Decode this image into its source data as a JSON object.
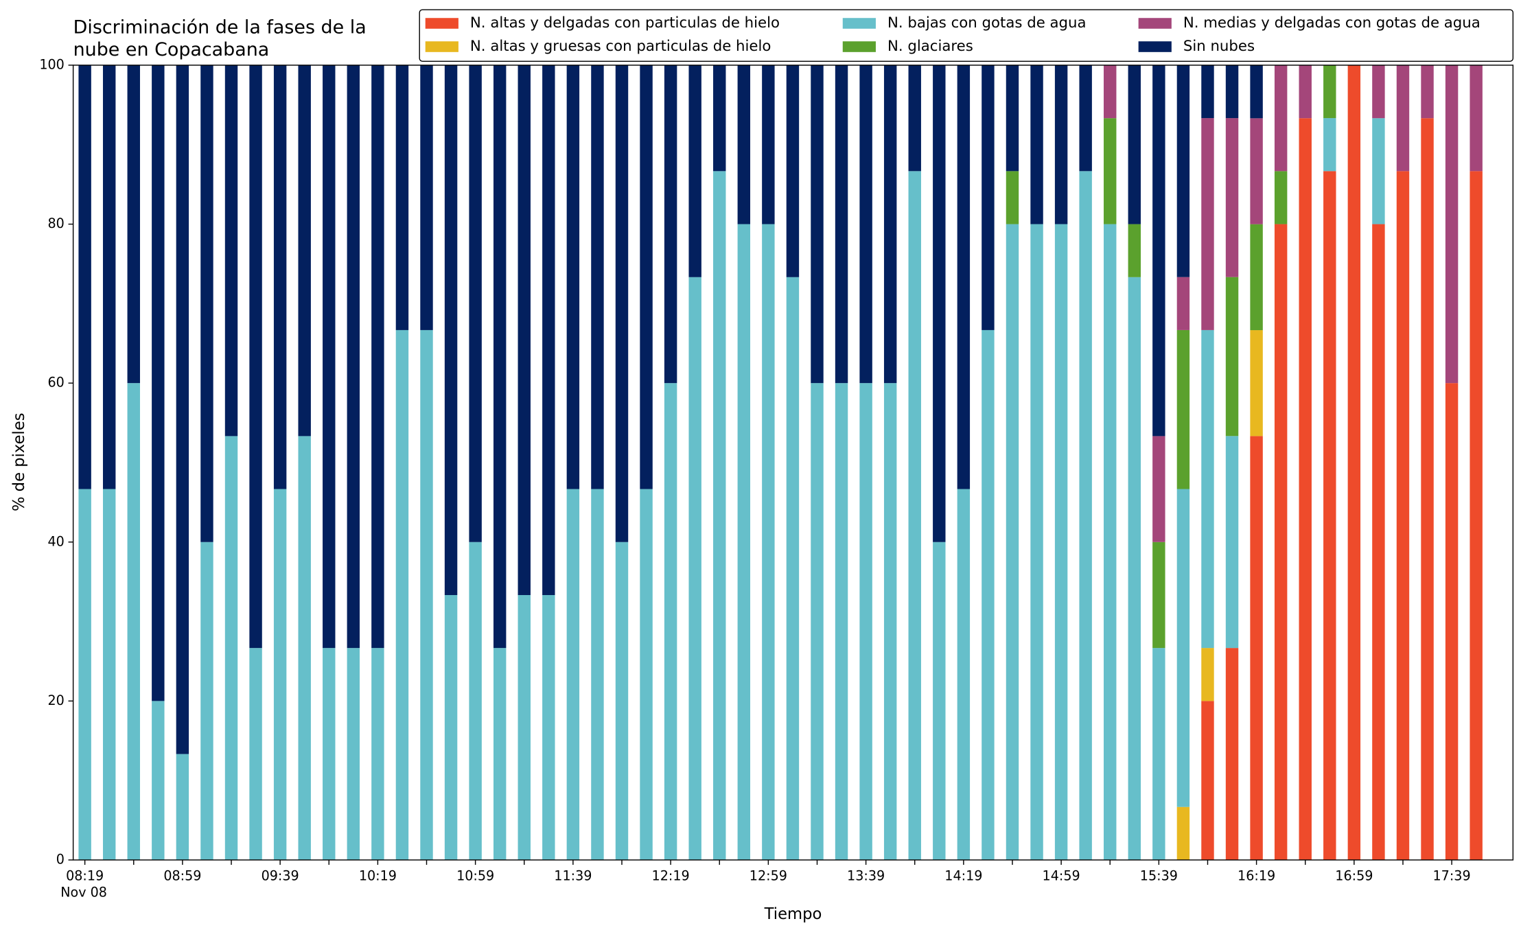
{
  "chart_data": {
    "type": "stacked_bar",
    "title": [
      "Discriminación de la fases de la",
      "nube en Copacabana"
    ],
    "xlabel": "Tiempo",
    "ylabel": "% de pixeles",
    "x_date_label": "Nov 08",
    "categories": [
      "08:19",
      null,
      null,
      null,
      "08:59",
      null,
      null,
      null,
      "09:39",
      null,
      null,
      null,
      "10:19",
      null,
      null,
      null,
      "10:59",
      null,
      null,
      null,
      "11:39",
      null,
      null,
      null,
      "12:19",
      null,
      null,
      null,
      "12:59",
      null,
      null,
      null,
      "13:39",
      null,
      null,
      null,
      "14:19",
      null,
      null,
      null,
      "14:59",
      null,
      null,
      null,
      "15:39",
      null,
      null,
      null,
      "16:19",
      null,
      null,
      null,
      "16:59",
      null,
      null,
      null,
      "17:39",
      null
    ],
    "ylim": [
      0,
      100
    ],
    "yticks": [
      0,
      20,
      40,
      60,
      80,
      100
    ],
    "grid": false,
    "legend": "top-right",
    "series": [
      {
        "name": "N. altas y delgadas con particulas de hielo",
        "color": "#ee4b2b",
        "values": [
          0,
          0,
          0,
          0,
          0,
          0,
          0,
          0,
          0,
          0,
          0,
          0,
          0,
          0,
          0,
          0,
          0,
          0,
          0,
          0,
          0,
          0,
          0,
          0,
          0,
          0,
          0,
          0,
          0,
          0,
          0,
          0,
          0,
          0,
          0,
          0,
          0,
          0,
          0,
          0,
          0,
          0,
          0,
          0,
          0,
          0,
          20,
          26.67,
          53.33,
          80,
          93.33,
          86.67,
          100,
          80,
          86.67,
          93.33,
          60,
          86.67
        ]
      },
      {
        "name": "N. altas y gruesas con particulas de hielo",
        "color": "#e8b820",
        "values": [
          0,
          0,
          0,
          0,
          0,
          0,
          0,
          0,
          0,
          0,
          0,
          0,
          0,
          0,
          0,
          0,
          0,
          0,
          0,
          0,
          0,
          0,
          0,
          0,
          0,
          0,
          0,
          0,
          0,
          0,
          0,
          0,
          0,
          0,
          0,
          0,
          0,
          0,
          0,
          0,
          0,
          0,
          0,
          0,
          0,
          6.67,
          6.67,
          0,
          13.33,
          0,
          0,
          0,
          0,
          0,
          0,
          0,
          0,
          0
        ]
      },
      {
        "name": "N. bajas con gotas de agua",
        "color": "#66bfca",
        "values": [
          46.67,
          46.67,
          60,
          20,
          13.33,
          40,
          53.33,
          26.67,
          46.67,
          53.33,
          26.67,
          26.67,
          26.67,
          66.67,
          66.67,
          33.33,
          40,
          26.67,
          33.33,
          33.33,
          46.67,
          46.67,
          40,
          46.67,
          60,
          73.33,
          86.67,
          80,
          80,
          73.33,
          60,
          60,
          60,
          60,
          86.67,
          40,
          46.67,
          66.67,
          80,
          80,
          80,
          86.67,
          80,
          73.33,
          26.67,
          40,
          40,
          26.67,
          0,
          0,
          0,
          6.67,
          0,
          13.33,
          0,
          0,
          0,
          0
        ]
      },
      {
        "name": "N. glaciares",
        "color": "#5ba12d",
        "values": [
          0,
          0,
          0,
          0,
          0,
          0,
          0,
          0,
          0,
          0,
          0,
          0,
          0,
          0,
          0,
          0,
          0,
          0,
          0,
          0,
          0,
          0,
          0,
          0,
          0,
          0,
          0,
          0,
          0,
          0,
          0,
          0,
          0,
          0,
          0,
          0,
          0,
          0,
          6.67,
          0,
          0,
          0,
          13.33,
          6.67,
          13.33,
          20,
          0,
          20,
          13.33,
          6.67,
          0,
          6.67,
          0,
          0,
          0,
          0,
          0,
          0
        ]
      },
      {
        "name": "N. medias y delgadas con gotas de agua",
        "color": "#a4467a",
        "values": [
          0,
          0,
          0,
          0,
          0,
          0,
          0,
          0,
          0,
          0,
          0,
          0,
          0,
          0,
          0,
          0,
          0,
          0,
          0,
          0,
          0,
          0,
          0,
          0,
          0,
          0,
          0,
          0,
          0,
          0,
          0,
          0,
          0,
          0,
          0,
          0,
          0,
          0,
          0,
          0,
          0,
          0,
          6.67,
          0,
          13.33,
          6.67,
          26.67,
          20,
          13.33,
          13.33,
          6.67,
          0,
          0,
          6.67,
          13.33,
          6.67,
          40,
          13.33
        ]
      },
      {
        "name": "Sin nubes",
        "color": "#03205e",
        "values": [
          53.33,
          53.33,
          40,
          80,
          86.67,
          60,
          46.67,
          73.33,
          53.33,
          46.67,
          73.33,
          73.33,
          73.33,
          33.33,
          33.33,
          66.67,
          60,
          73.33,
          66.67,
          66.67,
          53.33,
          53.33,
          60,
          53.33,
          40,
          26.67,
          13.33,
          20,
          20,
          26.67,
          40,
          40,
          40,
          40,
          13.33,
          60,
          53.33,
          33.33,
          13.33,
          20,
          20,
          13.33,
          0,
          20,
          46.67,
          26.67,
          6.67,
          6.67,
          6.67,
          0,
          0,
          0,
          0,
          0,
          0,
          0,
          0,
          0
        ]
      }
    ]
  }
}
